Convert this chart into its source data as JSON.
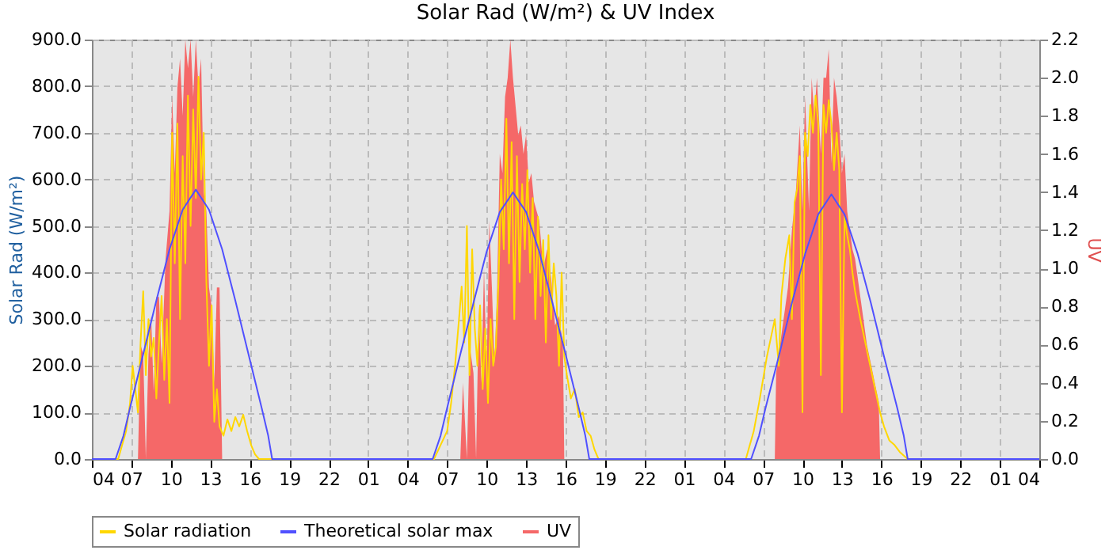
{
  "chart_data": {
    "type": "line",
    "title": "Solar Rad (W/m²) &  UV Index",
    "ylabel": "Solar Rad (W/m²)",
    "y2label": "UV",
    "xlim": [
      "--01-01T04:00",
      "--01-04T04:00"
    ],
    "xticks": [
      {
        "value": "--01-01T04:00",
        "label": "04"
      },
      {
        "value": "--01-01T07:00",
        "label": "07"
      },
      {
        "value": "--01-01T10:00",
        "label": "10"
      },
      {
        "value": "--01-01T13:00",
        "label": "13"
      },
      {
        "value": "--01-01T16:00",
        "label": "16"
      },
      {
        "value": "--01-01T19:00",
        "label": "19"
      },
      {
        "value": "--01-01T22:00",
        "label": "22"
      },
      {
        "value": "--01-02T01:00",
        "label": "01"
      },
      {
        "value": "--01-02T04:00",
        "label": "04"
      },
      {
        "value": "--01-02T07:00",
        "label": "07"
      },
      {
        "value": "--01-02T10:00",
        "label": "10"
      },
      {
        "value": "--01-02T13:00",
        "label": "13"
      },
      {
        "value": "--01-02T16:00",
        "label": "16"
      },
      {
        "value": "--01-02T19:00",
        "label": "19"
      },
      {
        "value": "--01-02T22:00",
        "label": "22"
      },
      {
        "value": "--01-03T01:00",
        "label": "01"
      },
      {
        "value": "--01-03T04:00",
        "label": "04"
      },
      {
        "value": "--01-03T07:00",
        "label": "07"
      },
      {
        "value": "--01-03T10:00",
        "label": "10"
      },
      {
        "value": "--01-03T13:00",
        "label": "13"
      },
      {
        "value": "--01-03T16:00",
        "label": "16"
      },
      {
        "value": "--01-03T19:00",
        "label": "19"
      },
      {
        "value": "--01-03T22:00",
        "label": "22"
      },
      {
        "value": "--01-04T01:00",
        "label": "01"
      },
      {
        "value": "--01-04T04:00",
        "label": "04"
      }
    ],
    "ylim": [
      0,
      900
    ],
    "yticks": [
      {
        "value": 0,
        "label": "0.0"
      },
      {
        "value": 100,
        "label": "100.0"
      },
      {
        "value": 200,
        "label": "200.0"
      },
      {
        "value": 300,
        "label": "300.0"
      },
      {
        "value": 400,
        "label": "400.0"
      },
      {
        "value": 500,
        "label": "500.0"
      },
      {
        "value": 600,
        "label": "600.0"
      },
      {
        "value": 700,
        "label": "700.0"
      },
      {
        "value": 800,
        "label": "800.0"
      },
      {
        "value": 900,
        "label": "900.0"
      }
    ],
    "y2lim": [
      0,
      2.2
    ],
    "y2ticks": [
      {
        "value": 0,
        "label": "0.0"
      },
      {
        "value": 0.2,
        "label": "0.2"
      },
      {
        "value": 0.4,
        "label": "0.4"
      },
      {
        "value": 0.6,
        "label": "0.6"
      },
      {
        "value": 0.8,
        "label": "0.8"
      },
      {
        "value": 1,
        "label": "1.0"
      },
      {
        "value": 1.2,
        "label": "1.2"
      },
      {
        "value": 1.4,
        "label": "1.4"
      },
      {
        "value": 1.6,
        "label": "1.6"
      },
      {
        "value": 1.8,
        "label": "1.8"
      },
      {
        "value": 2,
        "label": "2.0"
      },
      {
        "value": 2.2,
        "label": "2.2"
      }
    ],
    "grid": true,
    "legend": "bottom",
    "series": [
      {
        "name": "Solar radiation",
        "type": "line",
        "color": "#ffd700",
        "x": [
          "--01-01T04:00",
          "--01-01T06:00",
          "--01-01T06:18",
          "--01-01T06:36",
          "--01-01T06:54",
          "--01-01T07:06",
          "--01-01T07:18",
          "--01-01T07:30",
          "--01-01T07:42",
          "--01-01T07:54",
          "--01-01T08:06",
          "--01-01T08:18",
          "--01-01T08:30",
          "--01-01T08:42",
          "--01-01T08:54",
          "--01-01T09:06",
          "--01-01T09:18",
          "--01-01T09:30",
          "--01-01T09:42",
          "--01-01T09:54",
          "--01-01T10:06",
          "--01-01T10:18",
          "--01-01T10:30",
          "--01-01T10:42",
          "--01-01T10:54",
          "--01-01T11:06",
          "--01-01T11:18",
          "--01-01T11:30",
          "--01-01T11:42",
          "--01-01T11:54",
          "--01-01T12:06",
          "--01-01T12:18",
          "--01-01T12:30",
          "--01-01T12:42",
          "--01-01T12:54",
          "--01-01T13:06",
          "--01-01T13:18",
          "--01-01T13:30",
          "--01-01T13:42",
          "--01-01T14:00",
          "--01-01T14:18",
          "--01-01T14:36",
          "--01-01T14:54",
          "--01-01T15:12",
          "--01-01T15:30",
          "--01-01T15:48",
          "--01-01T16:06",
          "--01-01T16:24",
          "--01-01T16:42",
          "--01-02T06:00",
          "--01-02T06:30",
          "--01-02T07:00",
          "--01-02T07:18",
          "--01-02T07:36",
          "--01-02T07:54",
          "--01-02T08:06",
          "--01-02T08:18",
          "--01-02T08:30",
          "--01-02T08:42",
          "--01-02T08:54",
          "--01-02T09:06",
          "--01-02T09:18",
          "--01-02T09:30",
          "--01-02T09:42",
          "--01-02T09:54",
          "--01-02T10:06",
          "--01-02T10:18",
          "--01-02T10:30",
          "--01-02T10:42",
          "--01-02T10:54",
          "--01-02T11:06",
          "--01-02T11:18",
          "--01-02T11:30",
          "--01-02T11:42",
          "--01-02T11:54",
          "--01-02T12:06",
          "--01-02T12:18",
          "--01-02T12:30",
          "--01-02T12:42",
          "--01-02T12:54",
          "--01-02T13:06",
          "--01-02T13:18",
          "--01-02T13:30",
          "--01-02T13:42",
          "--01-02T13:54",
          "--01-02T14:06",
          "--01-02T14:18",
          "--01-02T14:30",
          "--01-02T14:42",
          "--01-02T14:54",
          "--01-02T15:06",
          "--01-02T15:18",
          "--01-02T15:30",
          "--01-02T15:42",
          "--01-02T15:54",
          "--01-02T16:06",
          "--01-02T16:24",
          "--01-02T16:42",
          "--01-02T17:00",
          "--01-02T17:18",
          "--01-02T17:36",
          "--01-02T17:54",
          "--01-02T18:12",
          "--01-02T18:30",
          "--01-03T05:42",
          "--01-03T06:00",
          "--01-03T06:18",
          "--01-03T06:42",
          "--01-03T07:00",
          "--01-03T07:18",
          "--01-03T07:36",
          "--01-03T07:54",
          "--01-03T08:12",
          "--01-03T08:24",
          "--01-03T08:42",
          "--01-03T09:00",
          "--01-03T09:12",
          "--01-03T09:24",
          "--01-03T09:36",
          "--01-03T09:48",
          "--01-03T10:00",
          "--01-03T10:12",
          "--01-03T10:24",
          "--01-03T10:36",
          "--01-03T10:48",
          "--01-03T11:00",
          "--01-03T11:12",
          "--01-03T11:24",
          "--01-03T11:36",
          "--01-03T11:48",
          "--01-03T12:00",
          "--01-03T12:12",
          "--01-03T12:24",
          "--01-03T12:36",
          "--01-03T12:48",
          "--01-03T13:00",
          "--01-03T13:12",
          "--01-03T13:24",
          "--01-03T13:36",
          "--01-03T13:48",
          "--01-03T14:00",
          "--01-03T14:12",
          "--01-03T14:24",
          "--01-03T14:42",
          "--01-03T15:00",
          "--01-03T15:18",
          "--01-03T15:36",
          "--01-03T15:54",
          "--01-03T16:12",
          "--01-03T16:36",
          "--01-03T17:00",
          "--01-03T17:24",
          "--01-03T18:00",
          "--01-04T04:00"
        ],
        "values": [
          0,
          0,
          30,
          60,
          120,
          200,
          150,
          100,
          250,
          360,
          180,
          300,
          220,
          260,
          130,
          250,
          350,
          170,
          300,
          120,
          700,
          420,
          720,
          300,
          650,
          420,
          780,
          500,
          750,
          560,
          820,
          600,
          700,
          380,
          200,
          330,
          80,
          150,
          70,
          50,
          85,
          60,
          90,
          70,
          95,
          60,
          30,
          10,
          0,
          0,
          30,
          60,
          120,
          200,
          300,
          370,
          250,
          500,
          180,
          450,
          280,
          200,
          330,
          150,
          280,
          120,
          300,
          200,
          240,
          380,
          600,
          450,
          730,
          420,
          680,
          300,
          650,
          380,
          590,
          450,
          620,
          400,
          560,
          300,
          520,
          350,
          470,
          250,
          480,
          300,
          420,
          350,
          200,
          400,
          220,
          180,
          130,
          150,
          90,
          100,
          60,
          50,
          20,
          0,
          0,
          30,
          60,
          120,
          170,
          220,
          260,
          300,
          200,
          350,
          430,
          480,
          300,
          550,
          580,
          650,
          100,
          700,
          650,
          760,
          700,
          780,
          720,
          180,
          760,
          700,
          770,
          720,
          620,
          700,
          620,
          100,
          520,
          480,
          450,
          400,
          360,
          330,
          300,
          260,
          220,
          180,
          140,
          100,
          70,
          40,
          30,
          15,
          0,
          0
        ]
      },
      {
        "name": "Theoretical solar max",
        "type": "line",
        "color": "#5050ff",
        "x": [
          "--01-01T04:00",
          "--01-01T05:48",
          "--01-01T06:24",
          "--01-01T06:54",
          "--01-01T07:54",
          "--01-01T08:54",
          "--01-01T09:54",
          "--01-01T10:54",
          "--01-01T11:54",
          "--01-01T12:54",
          "--01-01T13:54",
          "--01-01T14:54",
          "--01-01T15:54",
          "--01-01T16:54",
          "--01-01T17:24",
          "--01-01T17:42",
          "--01-02T05:54",
          "--01-02T06:30",
          "--01-02T07:00",
          "--01-02T08:00",
          "--01-02T09:00",
          "--01-02T10:00",
          "--01-02T11:00",
          "--01-02T12:00",
          "--01-02T13:00",
          "--01-02T14:00",
          "--01-02T15:00",
          "--01-02T16:00",
          "--01-02T17:00",
          "--01-02T17:30",
          "--01-02T17:48",
          "--01-03T06:06",
          "--01-03T06:42",
          "--01-03T07:12",
          "--01-03T08:12",
          "--01-03T09:12",
          "--01-03T10:12",
          "--01-03T11:12",
          "--01-03T12:12",
          "--01-03T13:12",
          "--01-03T14:12",
          "--01-03T15:12",
          "--01-03T16:12",
          "--01-03T17:12",
          "--01-03T17:42",
          "--01-03T18:00",
          "--01-04T04:00"
        ],
        "values": [
          0,
          0,
          50,
          110,
          225,
          340,
          450,
          535,
          578,
          535,
          450,
          340,
          225,
          110,
          50,
          0,
          0,
          50,
          110,
          225,
          335,
          445,
          530,
          572,
          530,
          445,
          335,
          225,
          110,
          50,
          0,
          0,
          50,
          110,
          220,
          335,
          440,
          525,
          568,
          525,
          440,
          335,
          220,
          110,
          50,
          0,
          0
        ]
      },
      {
        "name": "UV",
        "type": "area",
        "axis": "y2",
        "color": "#f56868",
        "x": [
          "--01-01T04:00",
          "--01-01T07:30",
          "--01-01T07:42",
          "--01-01T07:54",
          "--01-01T08:06",
          "--01-01T08:18",
          "--01-01T08:30",
          "--01-01T08:42",
          "--01-01T08:54",
          "--01-01T09:06",
          "--01-01T09:18",
          "--01-01T09:36",
          "--01-01T09:54",
          "--01-01T10:06",
          "--01-01T10:18",
          "--01-01T10:30",
          "--01-01T10:42",
          "--01-01T10:54",
          "--01-01T11:06",
          "--01-01T11:18",
          "--01-01T11:30",
          "--01-01T11:42",
          "--01-01T11:54",
          "--01-01T12:06",
          "--01-01T12:18",
          "--01-01T12:30",
          "--01-01T12:42",
          "--01-01T12:54",
          "--01-01T13:06",
          "--01-01T13:18",
          "--01-01T13:30",
          "--01-01T13:42",
          "--01-01T13:54",
          "--01-02T08:00",
          "--01-02T08:12",
          "--01-02T08:30",
          "--01-02T08:42",
          "--01-02T09:00",
          "--01-02T09:12",
          "--01-02T09:24",
          "--01-02T09:36",
          "--01-02T09:48",
          "--01-02T10:00",
          "--01-02T10:12",
          "--01-02T10:24",
          "--01-02T10:36",
          "--01-02T10:48",
          "--01-02T11:00",
          "--01-02T11:12",
          "--01-02T11:24",
          "--01-02T11:36",
          "--01-02T11:48",
          "--01-02T12:00",
          "--01-02T12:12",
          "--01-02T12:24",
          "--01-02T12:36",
          "--01-02T12:48",
          "--01-02T13:00",
          "--01-02T13:12",
          "--01-02T13:24",
          "--01-02T13:36",
          "--01-02T13:48",
          "--01-02T14:00",
          "--01-02T14:18",
          "--01-02T14:36",
          "--01-02T14:54",
          "--01-02T15:12",
          "--01-02T15:30",
          "--01-02T15:48",
          "--01-02T15:54",
          "--01-03T07:54",
          "--01-03T08:00",
          "--01-03T08:18",
          "--01-03T08:36",
          "--01-03T08:54",
          "--01-03T09:12",
          "--01-03T09:30",
          "--01-03T09:48",
          "--01-03T10:00",
          "--01-03T10:12",
          "--01-03T10:30",
          "--01-03T10:42",
          "--01-03T10:54",
          "--01-03T11:06",
          "--01-03T11:24",
          "--01-03T11:36",
          "--01-03T11:48",
          "--01-03T12:00",
          "--01-03T12:12",
          "--01-03T12:24",
          "--01-03T12:36",
          "--01-03T12:48",
          "--01-03T13:00",
          "--01-03T13:12",
          "--01-03T13:24",
          "--01-03T13:36",
          "--01-03T13:48",
          "--01-03T14:00",
          "--01-03T14:18",
          "--01-03T14:36",
          "--01-03T14:54",
          "--01-03T15:12",
          "--01-03T15:30",
          "--01-03T15:48",
          "--01-03T15:54",
          "--01-04T04:00"
        ],
        "values": [
          0,
          0,
          0.6,
          0.55,
          0,
          0.55,
          0.75,
          0.35,
          0.85,
          0.85,
          0.5,
          1.05,
          1.3,
          1.9,
          1.5,
          1.95,
          2.1,
          1.8,
          2.2,
          2.05,
          2.2,
          1.9,
          2.2,
          1.95,
          2.1,
          1.4,
          1.3,
          0.9,
          0.8,
          0.4,
          0.9,
          0.9,
          0,
          0,
          0.4,
          0,
          0.6,
          0.45,
          0,
          0.8,
          0.4,
          1,
          0.45,
          1.25,
          0.9,
          0.5,
          0.9,
          1.6,
          1.5,
          1.9,
          2,
          2.2,
          2,
          1.85,
          1.7,
          1.75,
          1.6,
          1.7,
          1.45,
          1.5,
          1.35,
          1.3,
          1.25,
          1,
          1.1,
          0.95,
          0.7,
          0.75,
          0.6,
          0,
          0,
          0.45,
          0.6,
          0.75,
          0.9,
          1.2,
          1.4,
          1.75,
          1.3,
          1.9,
          1.3,
          2,
          1.8,
          2,
          1.6,
          2,
          2,
          2.15,
          1.55,
          2,
          1.9,
          1.75,
          1.5,
          1.6,
          1.3,
          1.2,
          1.1,
          1.05,
          0.9,
          0.75,
          0.6,
          0.5,
          0.4,
          0.3,
          0,
          0
        ]
      }
    ]
  }
}
